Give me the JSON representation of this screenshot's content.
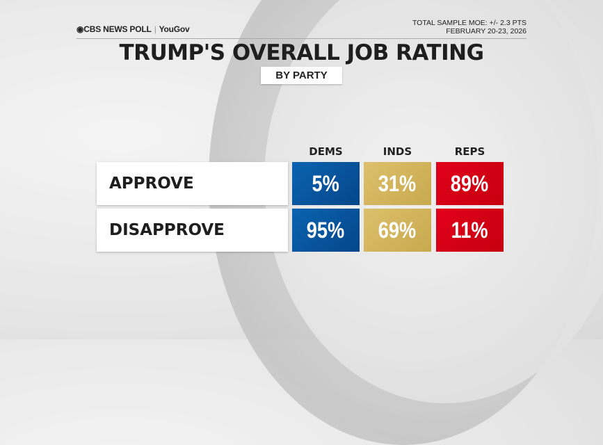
{
  "header": {
    "logo_text": "CBS NEWS POLL",
    "logo_partner": "YouGov",
    "moe": "TOTAL SAMPLE MOE: +/- 2.3 PTS",
    "dates": "FEBRUARY 20-23, 2026"
  },
  "chart_data": {
    "type": "table",
    "title": "TRUMP'S OVERALL JOB RATING",
    "subtitle": "BY PARTY",
    "categories": [
      "DEMS",
      "INDS",
      "REPS"
    ],
    "colors": [
      "#0a5aa3",
      "#d2b45c",
      "#d90012"
    ],
    "rows": [
      {
        "label": "APPROVE",
        "values": [
          5,
          31,
          89
        ],
        "display": [
          "5%",
          "31%",
          "89%"
        ]
      },
      {
        "label": "DISAPPROVE",
        "values": [
          95,
          69,
          11
        ],
        "display": [
          "95%",
          "69%",
          "11%"
        ]
      }
    ],
    "unit": "%"
  }
}
